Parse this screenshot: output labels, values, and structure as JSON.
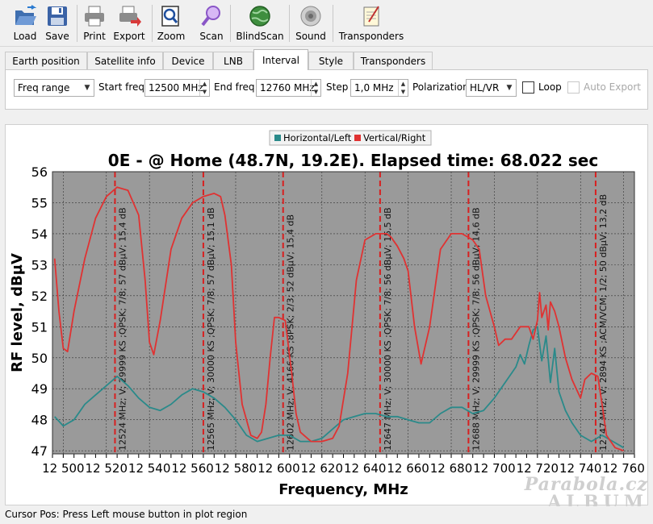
{
  "toolbar": {
    "buttons": [
      {
        "label": "Load",
        "icon": "folder-open-icon"
      },
      {
        "label": "Save",
        "icon": "floppy-disk-icon"
      },
      {
        "label": "Print",
        "icon": "printer-icon"
      },
      {
        "label": "Export",
        "icon": "export-icon"
      },
      {
        "label": "Zoom",
        "icon": "zoom-icon"
      },
      {
        "label": "Scan",
        "icon": "scan-icon"
      },
      {
        "label": "BlindScan",
        "icon": "globe-icon"
      },
      {
        "label": "Sound",
        "icon": "speaker-icon"
      },
      {
        "label": "Transponders",
        "icon": "notepad-icon"
      }
    ]
  },
  "tabs": [
    "Earth position",
    "Satellite info",
    "Device",
    "LNB",
    "Interval",
    "Style",
    "Transponders"
  ],
  "active_tab": "Interval",
  "interval": {
    "mode": "Freq range",
    "start_label": "Start freq",
    "start_value": "12500 MHz",
    "end_label": "End freq",
    "end_value": "12760 MHz",
    "step_label": "Step",
    "step_value": "1,0 MHz",
    "polarization_label": "Polarization",
    "polarization_value": "HL/VR",
    "loop_label": "Loop",
    "auto_export_label": "Auto Export"
  },
  "status": "Cursor Pos: Press Left mouse button in plot region",
  "watermark": {
    "line1": "Parabola.cz",
    "line2": "ALBUM"
  },
  "colors": {
    "horizontal": "#2a8a8a",
    "vertical": "#e03232",
    "plot_bg": "#9a9a9a",
    "marker": "#d82020"
  },
  "chart_data": {
    "type": "line",
    "title": "0E -  @ Home (48.7N, 19.2E). Elapsed time: 68.022 sec",
    "xlabel": "Frequency, MHz",
    "ylabel": "RF level, dBµV",
    "xlim": [
      12495,
      12765
    ],
    "ylim": [
      46.9,
      56
    ],
    "x_ticks": [
      12500,
      12520,
      12540,
      12560,
      12580,
      12600,
      12620,
      12640,
      12660,
      12680,
      12700,
      12720,
      12740,
      12760
    ],
    "x_tick_labels": [
      "12 500",
      "12 520",
      "12 540",
      "12 560",
      "12 580",
      "12 600",
      "12 620",
      "12 640",
      "12 660",
      "12 680",
      "12 700",
      "12 720",
      "12 740",
      "12 760"
    ],
    "y_ticks": [
      47,
      48,
      49,
      50,
      51,
      52,
      53,
      54,
      55,
      56
    ],
    "grid": true,
    "legend": "top-center",
    "series": [
      {
        "name": "Horizontal/Left",
        "x": [
          12496,
          12500,
          12505,
          12510,
          12515,
          12520,
          12525,
          12530,
          12535,
          12540,
          12545,
          12550,
          12555,
          12560,
          12565,
          12570,
          12575,
          12580,
          12585,
          12590,
          12595,
          12600,
          12605,
          12610,
          12615,
          12620,
          12625,
          12630,
          12635,
          12640,
          12645,
          12650,
          12655,
          12660,
          12665,
          12670,
          12675,
          12680,
          12685,
          12690,
          12695,
          12700,
          12705,
          12710,
          12712,
          12714,
          12716,
          12718,
          12720,
          12722,
          12724,
          12726,
          12728,
          12730,
          12733,
          12736,
          12740,
          12745,
          12750,
          12755,
          12760
        ],
        "values": [
          48.1,
          47.8,
          48.0,
          48.5,
          48.8,
          49.1,
          49.4,
          49.1,
          48.7,
          48.4,
          48.3,
          48.5,
          48.8,
          49.0,
          48.9,
          48.7,
          48.4,
          48.0,
          47.5,
          47.3,
          47.4,
          47.5,
          47.5,
          47.3,
          47.3,
          47.4,
          47.7,
          48.0,
          48.1,
          48.2,
          48.2,
          48.1,
          48.1,
          48.0,
          47.9,
          47.9,
          48.2,
          48.4,
          48.4,
          48.2,
          48.3,
          48.7,
          49.2,
          49.7,
          50.1,
          49.8,
          50.4,
          50.9,
          51.0,
          49.9,
          50.7,
          49.2,
          50.3,
          48.9,
          48.3,
          47.9,
          47.5,
          47.3,
          47.5,
          47.3,
          47.1
        ]
      },
      {
        "name": "Vertical/Right",
        "x": [
          12496,
          12498,
          12500,
          12502,
          12505,
          12510,
          12515,
          12520,
          12525,
          12530,
          12535,
          12538,
          12540,
          12542,
          12545,
          12550,
          12555,
          12560,
          12565,
          12570,
          12573,
          12575,
          12578,
          12580,
          12583,
          12587,
          12590,
          12592,
          12594,
          12596,
          12598,
          12600,
          12603,
          12606,
          12608,
          12610,
          12615,
          12620,
          12625,
          12628,
          12632,
          12636,
          12640,
          12645,
          12650,
          12652,
          12655,
          12658,
          12660,
          12663,
          12666,
          12670,
          12675,
          12680,
          12685,
          12690,
          12693,
          12696,
          12700,
          12702,
          12705,
          12708,
          12712,
          12716,
          12718,
          12720,
          12721,
          12722,
          12724,
          12725,
          12726,
          12728,
          12730,
          12733,
          12736,
          12740,
          12742,
          12745,
          12748,
          12750,
          12752,
          12756,
          12760
        ],
        "values": [
          53.2,
          51.5,
          50.3,
          50.2,
          51.5,
          53.2,
          54.5,
          55.2,
          55.5,
          55.4,
          54.6,
          52.5,
          50.5,
          50.1,
          51.2,
          53.5,
          54.5,
          55.0,
          55.2,
          55.3,
          55.2,
          54.6,
          53.0,
          50.5,
          48.5,
          47.5,
          47.4,
          47.6,
          48.5,
          50.0,
          51.3,
          51.3,
          51.2,
          49.5,
          48.2,
          47.6,
          47.3,
          47.3,
          47.4,
          47.8,
          49.5,
          52.5,
          53.8,
          54.0,
          54.0,
          53.9,
          53.6,
          53.2,
          52.8,
          51.0,
          49.8,
          51.0,
          53.5,
          54.0,
          54.0,
          53.8,
          53.5,
          52.0,
          51.0,
          50.4,
          50.6,
          50.6,
          51.0,
          51.0,
          50.6,
          51.2,
          52.1,
          51.3,
          51.7,
          50.9,
          51.8,
          51.5,
          51.0,
          50.0,
          49.3,
          48.7,
          49.3,
          49.5,
          49.4,
          48.5,
          47.5,
          47.1,
          47.0
        ]
      }
    ],
    "transponders": [
      {
        "x": 12524,
        "label": "12524 MHz; V; 29999 KS ;QPSK; 7/8; 57 dBµV; 15,4 dB"
      },
      {
        "x": 12565,
        "label": "12565 MHz; V; 30000 KS ;QPSK; 7/8; 57 dBµV; 15,1 dB"
      },
      {
        "x": 12602,
        "label": "12602 MHz; V; 4166 KS ;8PSK; 2/3; 52 dBµV; 15,4 dB"
      },
      {
        "x": 12647,
        "label": "12647 MHz; V; 30000 KS ;QPSK; 7/8; 56 dBµV; 15,5 dB"
      },
      {
        "x": 12688,
        "label": "12688 MHz; V; 29999 KS ;QPSK; 7/8; 56 dBµV; 14,6 dB"
      },
      {
        "x": 12747,
        "label": "12747 MHz; V; 2894 KS ;ACM/VCM; 1/2; 50 dBµV; 13,2 dB"
      }
    ]
  }
}
